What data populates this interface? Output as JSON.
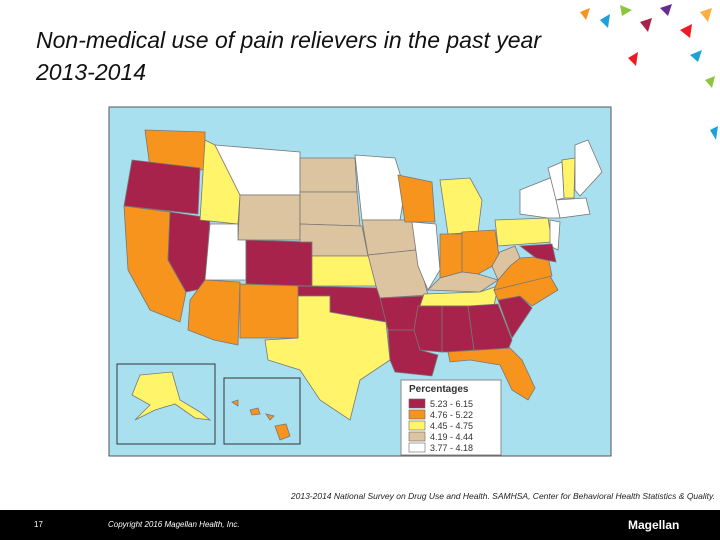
{
  "title": "Non-medical use of pain relievers in the past year",
  "subtitle": "2013-2014",
  "legend": {
    "title": "Percentages",
    "items": [
      {
        "label": "5.23 - 6.15",
        "color": "#a8234c"
      },
      {
        "label": "4.76 - 5.22",
        "color": "#f7941d"
      },
      {
        "label": "4.45 - 4.75",
        "color": "#fff46a"
      },
      {
        "label": "4.19 - 4.44",
        "color": "#dcc4a0"
      },
      {
        "label": "3.77 - 4.18",
        "color": "#ffffff"
      }
    ]
  },
  "source": "2013-2014 National Survey on Drug Use and Health. SAMHSA, Center for Behavioral Health Statistics & Quality.",
  "footer": {
    "page": "17",
    "copyright": "Copyright 2016 Magellan Health, Inc.",
    "logo": "Magellan"
  }
}
